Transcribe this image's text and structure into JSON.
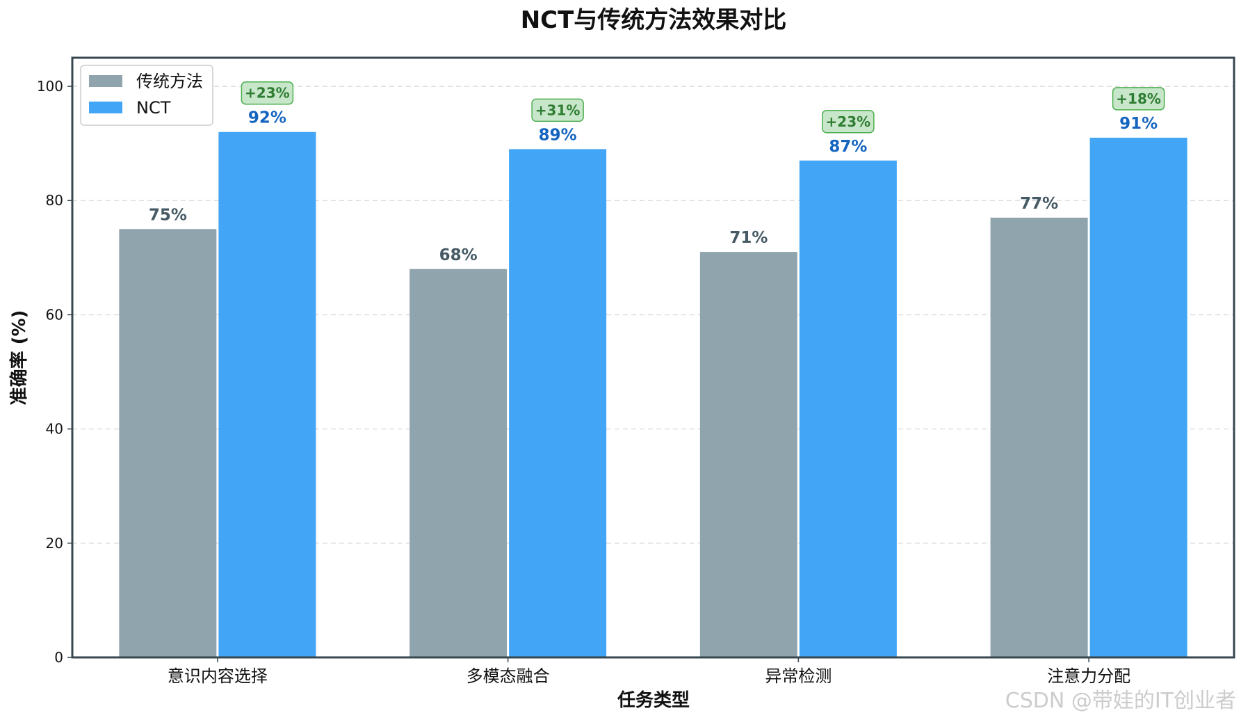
{
  "chart_data": {
    "type": "bar",
    "title": "NCT与传统方法效果对比",
    "xlabel": "任务类型",
    "ylabel": "准确率 (%)",
    "ylim": [
      0,
      105
    ],
    "yticks": [
      0,
      20,
      40,
      60,
      80,
      100
    ],
    "grid": "horizontal dashed",
    "legend_position": "top-left",
    "categories": [
      "意识内容选择",
      "多模态融合",
      "异常检测",
      "注意力分配"
    ],
    "series": [
      {
        "name": "传统方法",
        "color": "#90a4ae",
        "label_color": "#455a64",
        "values": [
          75,
          68,
          71,
          77
        ],
        "labels": [
          "75%",
          "68%",
          "71%",
          "77%"
        ]
      },
      {
        "name": "NCT",
        "color": "#42a5f5",
        "label_color": "#1565c0",
        "values": [
          92,
          89,
          87,
          91
        ],
        "labels": [
          "92%",
          "89%",
          "87%",
          "91%"
        ]
      }
    ],
    "improvements": [
      "+23%",
      "+31%",
      "+23%",
      "+18%"
    ],
    "improvement_badge_fill": "#c8e6c9",
    "improvement_badge_stroke": "#4caf50",
    "improvement_text_color": "#2e7d32"
  },
  "watermark": "CSDN @带娃的IT创业者"
}
